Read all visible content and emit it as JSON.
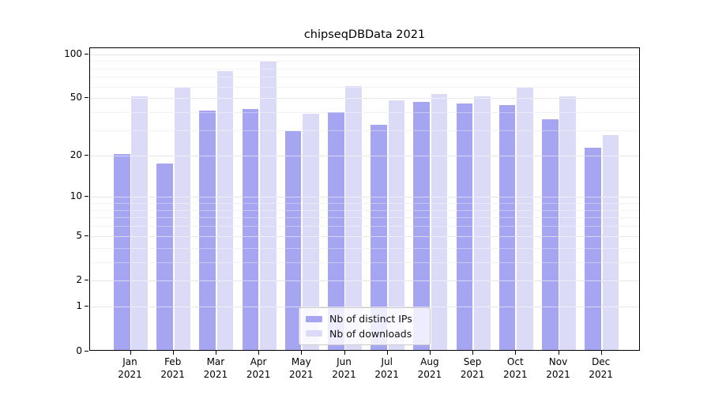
{
  "chart_data": {
    "type": "bar",
    "title": "chipseqDBData 2021",
    "categories": [
      "Jan 2021",
      "Feb 2021",
      "Mar 2021",
      "Apr 2021",
      "May 2021",
      "Jun 2021",
      "Jul 2021",
      "Aug 2021",
      "Sep 2021",
      "Oct 2021",
      "Nov 2021",
      "Dec 2021"
    ],
    "series": [
      {
        "name": "Nb of distinct IPs",
        "color": "#a5a5f2",
        "values": [
          20,
          17,
          40,
          41,
          29,
          39,
          32,
          46,
          45,
          44,
          35,
          22
        ]
      },
      {
        "name": "Nb of downloads",
        "color": "#dbdbf8",
        "values": [
          50,
          58,
          75,
          87,
          38,
          59,
          47,
          52,
          50,
          58,
          50,
          27
        ]
      }
    ],
    "xlabel": "",
    "ylabel": "",
    "yscale": "symlog",
    "ylim": [
      0,
      110
    ],
    "yticks_major": [
      0,
      1,
      2,
      5,
      10,
      20,
      50,
      100
    ],
    "yticks_minor": [
      3,
      4,
      6,
      7,
      8,
      9,
      30,
      40,
      60,
      70,
      80,
      90
    ],
    "grid": true,
    "legend_position": "lower-center-inside"
  }
}
